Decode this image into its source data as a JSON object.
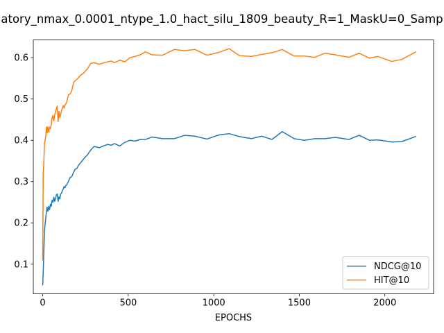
{
  "chart_data": {
    "type": "line",
    "title": "atory_nmax_0.0001_ntype_1.0_hact_silu_1809_beauty_R=1_MaskU=0_Samp",
    "xlabel": "EPOCHS",
    "ylabel": "",
    "xlim": [
      -55,
      2285
    ],
    "ylim": [
      0.028,
      0.643
    ],
    "xticks": [
      0,
      500,
      1000,
      1500,
      2000
    ],
    "yticks": [
      0.1,
      0.2,
      0.3,
      0.4,
      0.5,
      0.6
    ],
    "grid": false,
    "legend_position": "lower right",
    "series": [
      {
        "name": "NDCG@10",
        "color": "#1f77b4",
        "x": [
          0,
          5,
          10,
          15,
          20,
          25,
          30,
          35,
          40,
          45,
          50,
          55,
          60,
          65,
          70,
          75,
          80,
          85,
          90,
          95,
          100,
          105,
          110,
          115,
          120,
          125,
          130,
          135,
          140,
          150,
          160,
          170,
          180,
          190,
          200,
          210,
          220,
          230,
          240,
          250,
          260,
          280,
          300,
          330,
          360,
          380,
          400,
          420,
          450,
          480,
          510,
          540,
          570,
          600,
          640,
          700,
          770,
          830,
          890,
          960,
          1030,
          1090,
          1150,
          1220,
          1280,
          1340,
          1400,
          1470,
          1530,
          1590,
          1650,
          1710,
          1790,
          1850,
          1910,
          1960,
          2040,
          2100,
          2180
        ],
        "y": [
          0.05,
          0.105,
          0.18,
          0.2,
          0.22,
          0.238,
          0.228,
          0.24,
          0.232,
          0.245,
          0.24,
          0.255,
          0.25,
          0.262,
          0.252,
          0.258,
          0.268,
          0.27,
          0.252,
          0.263,
          0.258,
          0.27,
          0.272,
          0.278,
          0.282,
          0.288,
          0.285,
          0.29,
          0.292,
          0.3,
          0.31,
          0.312,
          0.322,
          0.33,
          0.332,
          0.34,
          0.345,
          0.35,
          0.355,
          0.36,
          0.364,
          0.376,
          0.385,
          0.382,
          0.387,
          0.39,
          0.388,
          0.392,
          0.386,
          0.395,
          0.4,
          0.398,
          0.402,
          0.402,
          0.408,
          0.404,
          0.404,
          0.412,
          0.41,
          0.403,
          0.413,
          0.416,
          0.409,
          0.404,
          0.41,
          0.402,
          0.421,
          0.404,
          0.4,
          0.404,
          0.404,
          0.407,
          0.402,
          0.412,
          0.4,
          0.401,
          0.396,
          0.397,
          0.409
        ]
      },
      {
        "name": "HIT@10",
        "color": "#ff7f0e",
        "x": [
          0,
          3,
          6,
          10,
          14,
          18,
          22,
          26,
          30,
          35,
          40,
          45,
          50,
          55,
          60,
          65,
          70,
          75,
          80,
          85,
          90,
          95,
          100,
          105,
          110,
          115,
          120,
          125,
          130,
          135,
          140,
          150,
          160,
          170,
          180,
          190,
          200,
          210,
          220,
          230,
          240,
          250,
          260,
          280,
          300,
          330,
          360,
          380,
          400,
          420,
          450,
          480,
          510,
          540,
          570,
          600,
          640,
          700,
          770,
          830,
          890,
          960,
          1030,
          1090,
          1150,
          1220,
          1280,
          1340,
          1400,
          1470,
          1530,
          1590,
          1650,
          1710,
          1790,
          1850,
          1910,
          1960,
          2040,
          2100,
          2180
        ],
        "y": [
          0.11,
          0.325,
          0.34,
          0.39,
          0.4,
          0.41,
          0.432,
          0.418,
          0.433,
          0.42,
          0.432,
          0.428,
          0.438,
          0.455,
          0.46,
          0.447,
          0.46,
          0.47,
          0.476,
          0.483,
          0.445,
          0.47,
          0.455,
          0.462,
          0.472,
          0.478,
          0.484,
          0.478,
          0.486,
          0.488,
          0.492,
          0.51,
          0.512,
          0.52,
          0.54,
          0.544,
          0.548,
          0.552,
          0.557,
          0.56,
          0.563,
          0.568,
          0.572,
          0.586,
          0.588,
          0.584,
          0.588,
          0.59,
          0.592,
          0.588,
          0.594,
          0.59,
          0.6,
          0.603,
          0.607,
          0.614,
          0.607,
          0.606,
          0.62,
          0.617,
          0.62,
          0.606,
          0.613,
          0.622,
          0.605,
          0.603,
          0.608,
          0.612,
          0.62,
          0.604,
          0.604,
          0.601,
          0.611,
          0.607,
          0.601,
          0.611,
          0.599,
          0.603,
          0.591,
          0.596,
          0.614
        ]
      }
    ]
  }
}
